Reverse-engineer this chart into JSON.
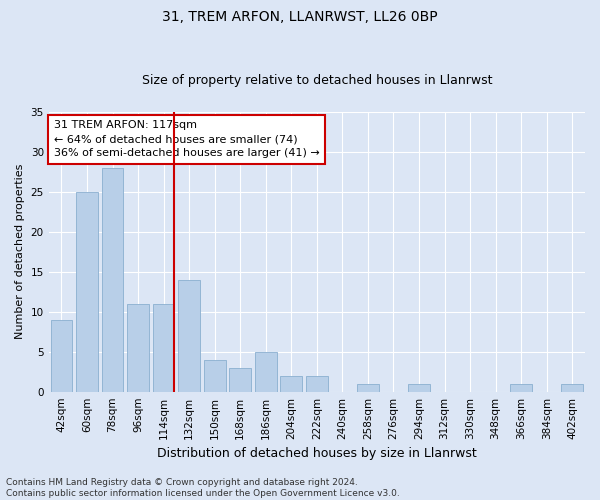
{
  "title1": "31, TREM ARFON, LLANRWST, LL26 0BP",
  "title2": "Size of property relative to detached houses in Llanrwst",
  "xlabel": "Distribution of detached houses by size in Llanrwst",
  "ylabel": "Number of detached properties",
  "categories": [
    "42sqm",
    "60sqm",
    "78sqm",
    "96sqm",
    "114sqm",
    "132sqm",
    "150sqm",
    "168sqm",
    "186sqm",
    "204sqm",
    "222sqm",
    "240sqm",
    "258sqm",
    "276sqm",
    "294sqm",
    "312sqm",
    "330sqm",
    "348sqm",
    "366sqm",
    "384sqm",
    "402sqm"
  ],
  "values": [
    9,
    25,
    28,
    11,
    11,
    14,
    4,
    3,
    5,
    2,
    2,
    0,
    1,
    0,
    1,
    0,
    0,
    0,
    1,
    0,
    1
  ],
  "bar_color": "#b8cfe8",
  "bar_edge_color": "#8aafd0",
  "vline_x_index": 4,
  "vline_color": "#cc0000",
  "annotation_text": "31 TREM ARFON: 117sqm\n← 64% of detached houses are smaller (74)\n36% of semi-detached houses are larger (41) →",
  "annotation_box_color": "#ffffff",
  "annotation_box_edge_color": "#cc0000",
  "ylim": [
    0,
    35
  ],
  "yticks": [
    0,
    5,
    10,
    15,
    20,
    25,
    30,
    35
  ],
  "footer_text": "Contains HM Land Registry data © Crown copyright and database right 2024.\nContains public sector information licensed under the Open Government Licence v3.0.",
  "bg_color": "#dce6f5",
  "plot_bg_color": "#dce6f5",
  "grid_color": "#ffffff",
  "title1_fontsize": 10,
  "title2_fontsize": 9,
  "xlabel_fontsize": 9,
  "ylabel_fontsize": 8,
  "tick_fontsize": 7.5,
  "annotation_fontsize": 8,
  "footer_fontsize": 6.5
}
